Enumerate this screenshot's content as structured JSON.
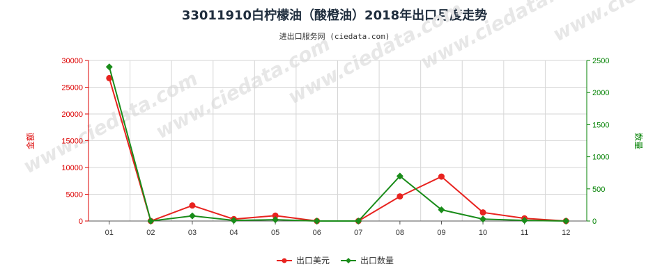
{
  "title": "33011910白柠檬油（酸橙油）2018年出口月度走势",
  "subtitle": "进出口服务网 (ciedata.com)",
  "watermark": "www.ciedata.com",
  "chart_data": {
    "type": "line",
    "categories": [
      "01",
      "02",
      "03",
      "04",
      "05",
      "06",
      "07",
      "08",
      "09",
      "10",
      "11",
      "12"
    ],
    "y_left": {
      "label": "金额",
      "ticks": [
        "0",
        "5000",
        "10000",
        "15000",
        "20000",
        "25000",
        "30000"
      ],
      "min": 0,
      "max": 30000,
      "color": "#dd0000"
    },
    "y_right": {
      "label": "数量",
      "ticks": [
        "0",
        "500",
        "1000",
        "1500",
        "2000",
        "2500"
      ],
      "min": 0,
      "max": 2500,
      "color": "#008000"
    },
    "grid": true,
    "legend_position": "bottom",
    "series": [
      {
        "name": "出口美元",
        "axis": "left",
        "color": "#e8231f",
        "marker": "circle",
        "values": [
          26700,
          0,
          2900,
          350,
          1000,
          0,
          0,
          4600,
          8300,
          1600,
          500,
          0
        ]
      },
      {
        "name": "出口数量",
        "axis": "right",
        "color": "#1a8c1a",
        "marker": "diamond",
        "values": [
          2400,
          0,
          80,
          10,
          20,
          0,
          0,
          700,
          175,
          30,
          10,
          0
        ]
      }
    ]
  }
}
